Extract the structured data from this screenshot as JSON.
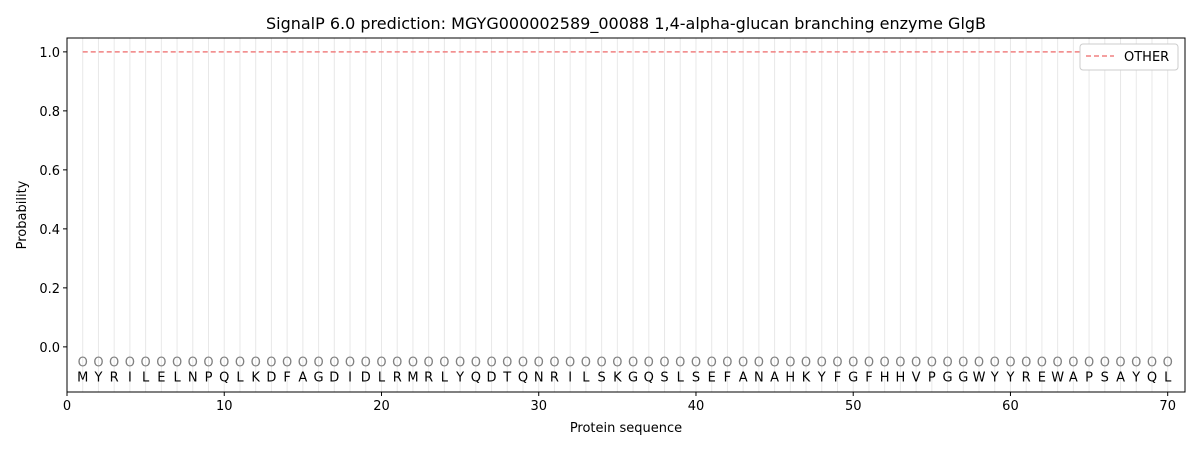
{
  "chart_data": {
    "type": "line",
    "title": "SignalP 6.0 prediction: MGYG000002589_00088 1,4-alpha-glucan branching enzyme GlgB",
    "xlabel": "Protein sequence",
    "ylabel": "Probability",
    "xlim": [
      0,
      71.1
    ],
    "ylim": [
      -0.153,
      1.047
    ],
    "xticks": [
      0,
      10,
      20,
      30,
      40,
      50,
      60,
      70
    ],
    "yticks": [
      "0.0",
      "0.2",
      "0.4",
      "0.6",
      "0.8",
      "1.0"
    ],
    "grid": "vertical lines at each residue",
    "legend_position": "top-right",
    "sequence": [
      "M",
      "Y",
      "R",
      "I",
      "L",
      "E",
      "L",
      "N",
      "P",
      "Q",
      "L",
      "K",
      "D",
      "F",
      "A",
      "G",
      "D",
      "I",
      "D",
      "L",
      "R",
      "M",
      "R",
      "L",
      "Y",
      "Q",
      "D",
      "T",
      "Q",
      "N",
      "R",
      "I",
      "L",
      "S",
      "K",
      "G",
      "Q",
      "S",
      "L",
      "S",
      "E",
      "F",
      "A",
      "N",
      "A",
      "H",
      "K",
      "Y",
      "F",
      "G",
      "F",
      "H",
      "H",
      "V",
      "P",
      "G",
      "G",
      "W",
      "Y",
      "Y",
      "R",
      "E",
      "W",
      "A",
      "P",
      "S",
      "A",
      "Y",
      "Q",
      "L"
    ],
    "predicted_labels": "O",
    "series": [
      {
        "name": "OTHER",
        "color": "#f08080",
        "style": "dashed",
        "x_range": [
          1,
          70
        ],
        "value": 1.0
      }
    ]
  }
}
